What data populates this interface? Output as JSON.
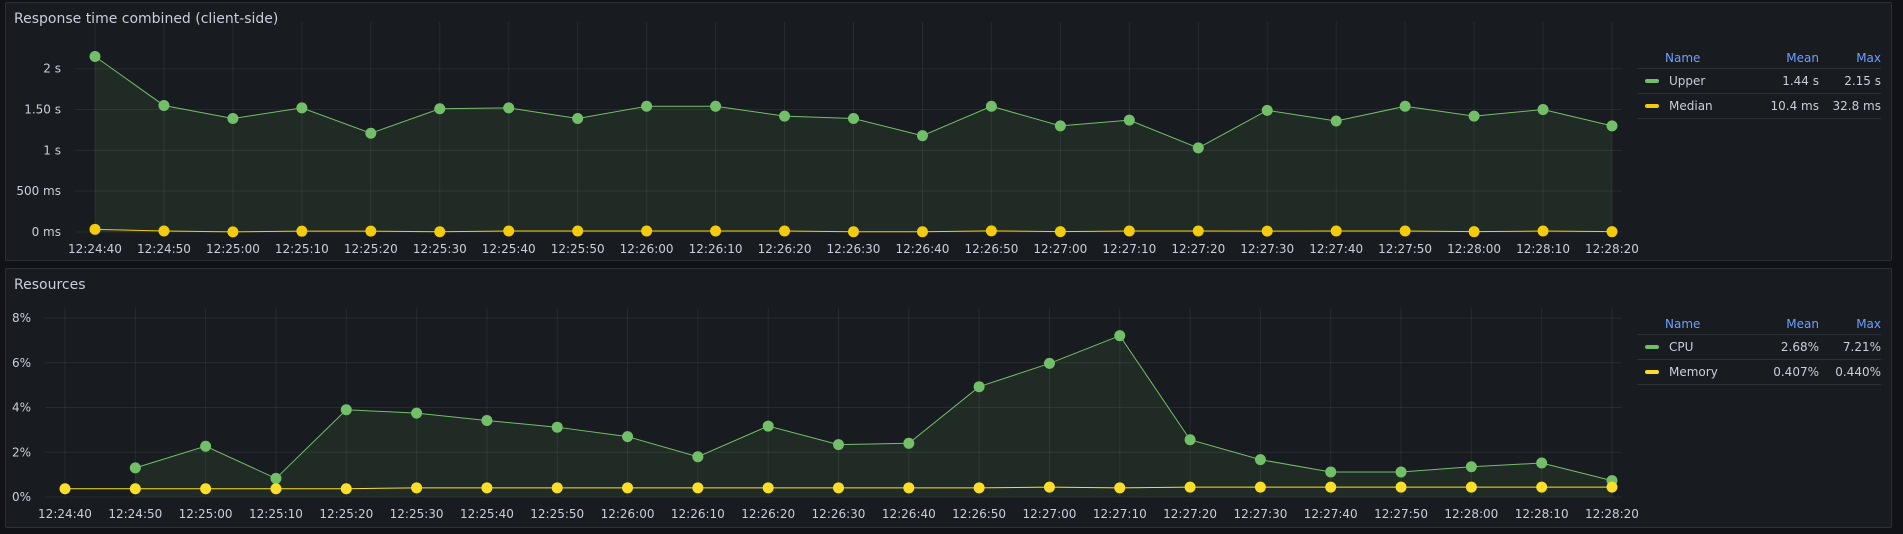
{
  "panels": [
    {
      "title": "Response time combined (client-side)",
      "legend": {
        "headers": {
          "name": "Name",
          "mean": "Mean",
          "max": "Max"
        },
        "rows": [
          {
            "name": "Upper",
            "mean": "1.44 s",
            "max": "2.15 s",
            "color": "#73bf69"
          },
          {
            "name": "Median",
            "mean": "10.4 ms",
            "max": "32.8 ms",
            "color": "#f2cc0c"
          }
        ]
      }
    },
    {
      "title": "Resources",
      "legend": {
        "headers": {
          "name": "Name",
          "mean": "Mean",
          "max": "Max"
        },
        "rows": [
          {
            "name": "CPU",
            "mean": "2.68%",
            "max": "7.21%",
            "color": "#73bf69"
          },
          {
            "name": "Memory",
            "mean": "0.407%",
            "max": "0.440%",
            "color": "#fade2a"
          }
        ]
      }
    }
  ],
  "chart_data": [
    {
      "type": "line",
      "title": "Response time combined (client-side)",
      "x": [
        "12:24:40",
        "12:24:50",
        "12:25:00",
        "12:25:10",
        "12:25:20",
        "12:25:30",
        "12:25:40",
        "12:25:50",
        "12:26:00",
        "12:26:10",
        "12:26:20",
        "12:26:30",
        "12:26:40",
        "12:26:50",
        "12:27:00",
        "12:27:10",
        "12:27:20",
        "12:27:30",
        "12:27:40",
        "12:27:50",
        "12:28:00",
        "12:28:10",
        "12:28:20"
      ],
      "x_ticks": [
        "12:24:40",
        "12:24:50",
        "12:25:00",
        "12:25:10",
        "12:25:20",
        "12:25:30",
        "12:25:40",
        "12:25:50",
        "12:26:00",
        "12:26:10",
        "12:26:20",
        "12:26:30",
        "12:26:40",
        "12:26:50",
        "12:27:00",
        "12:27:10",
        "12:27:20",
        "12:27:30",
        "12:27:40",
        "12:27:50",
        "12:28:00",
        "12:28:10",
        "12:28:20"
      ],
      "y_ticks": [
        {
          "value": 0,
          "label": "0 ms"
        },
        {
          "value": 500,
          "label": "500 ms"
        },
        {
          "value": 1000,
          "label": "1 s"
        },
        {
          "value": 1500,
          "label": "1.50 s"
        },
        {
          "value": 2000,
          "label": "2 s"
        }
      ],
      "ylim": [
        0,
        2450
      ],
      "unit": "ms",
      "grid": true,
      "legend_position": "right",
      "series": [
        {
          "name": "Upper",
          "color": "#73bf69",
          "fill": true,
          "values": [
            2150,
            1550,
            1390,
            1520,
            1210,
            1510,
            1520,
            1390,
            1540,
            1540,
            1420,
            1390,
            1180,
            1540,
            1300,
            1370,
            1030,
            1490,
            1360,
            1540,
            1420,
            1500,
            1300
          ]
        },
        {
          "name": "Median",
          "color": "#f2cc0c",
          "fill": false,
          "values": [
            32.8,
            12,
            2,
            10,
            11,
            3,
            12,
            12,
            12,
            12,
            12,
            3,
            3,
            14,
            5,
            12,
            12,
            11,
            12,
            12,
            4,
            12,
            4
          ]
        }
      ]
    },
    {
      "type": "line",
      "title": "Resources",
      "x": [
        "12:24:40",
        "12:24:50",
        "12:25:00",
        "12:25:10",
        "12:25:20",
        "12:25:30",
        "12:25:40",
        "12:25:50",
        "12:26:00",
        "12:26:10",
        "12:26:20",
        "12:26:30",
        "12:26:40",
        "12:26:50",
        "12:27:00",
        "12:27:10",
        "12:27:20",
        "12:27:30",
        "12:27:40",
        "12:27:50",
        "12:28:00",
        "12:28:10",
        "12:28:20"
      ],
      "x_ticks": [
        "12:24:40",
        "12:24:50",
        "12:25:00",
        "12:25:10",
        "12:25:20",
        "12:25:30",
        "12:25:40",
        "12:25:50",
        "12:26:00",
        "12:26:10",
        "12:26:20",
        "12:26:30",
        "12:26:40",
        "12:26:50",
        "12:27:00",
        "12:27:10",
        "12:27:20",
        "12:27:30",
        "12:27:40",
        "12:27:50",
        "12:28:00",
        "12:28:10",
        "12:28:20"
      ],
      "y_ticks": [
        {
          "value": 0,
          "label": "0%"
        },
        {
          "value": 2,
          "label": "2%"
        },
        {
          "value": 4,
          "label": "4%"
        },
        {
          "value": 6,
          "label": "6%"
        },
        {
          "value": 8,
          "label": "8%"
        }
      ],
      "ylim": [
        0,
        8
      ],
      "unit": "%",
      "grid": true,
      "legend_position": "right",
      "series": [
        {
          "name": "CPU",
          "color": "#73bf69",
          "fill": true,
          "values": [
            null,
            1.3,
            2.27,
            0.83,
            3.9,
            3.75,
            3.42,
            3.12,
            2.7,
            1.8,
            3.17,
            2.34,
            2.4,
            4.93,
            5.97,
            7.21,
            2.56,
            1.67,
            1.12,
            1.12,
            1.35,
            1.52,
            0.73
          ]
        },
        {
          "name": "Memory",
          "color": "#fade2a",
          "fill": false,
          "values": [
            0.37,
            0.37,
            0.37,
            0.37,
            0.37,
            0.41,
            0.41,
            0.41,
            0.41,
            0.41,
            0.41,
            0.41,
            0.41,
            0.41,
            0.44,
            0.41,
            0.44,
            0.44,
            0.44,
            0.44,
            0.44,
            0.44,
            0.44
          ]
        }
      ]
    }
  ]
}
